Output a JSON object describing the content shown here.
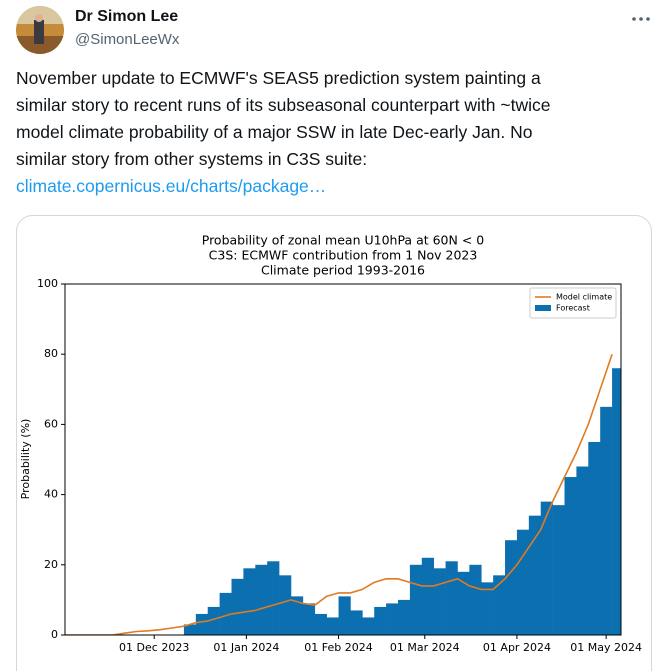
{
  "user": {
    "name": "Dr Simon Lee",
    "handle": "@SimonLeeWx"
  },
  "tweet": {
    "lines": [
      "November update to ECMWF's SEAS5 prediction system painting a",
      "similar story to recent runs of its subseasonal counterpart with ~twice",
      "model climate probability of a major SSW in late Dec-early Jan. No",
      "similar story from other systems in C3S suite:"
    ],
    "link": "climate.copernicus.eu/charts/package…"
  },
  "chart_data": {
    "type": "bar-line",
    "title": "Probability of zonal mean U10hPa at 60N < 0",
    "subtitle": [
      "C3S: ECMWF contribution from 1 Nov 2023",
      "Climate period 1993-2016"
    ],
    "ylabel": "Probability (%)",
    "x": [
      "01 Nov 2023",
      "05 Nov 2023",
      "09 Nov 2023",
      "13 Nov 2023",
      "17 Nov 2023",
      "21 Nov 2023",
      "25 Nov 2023",
      "29 Nov 2023",
      "03 Dec 2023",
      "07 Dec 2023",
      "11 Dec 2023",
      "15 Dec 2023",
      "19 Dec 2023",
      "23 Dec 2023",
      "27 Dec 2023",
      "31 Dec 2023",
      "04 Jan 2024",
      "08 Jan 2024",
      "12 Jan 2024",
      "16 Jan 2024",
      "20 Jan 2024",
      "24 Jan 2024",
      "28 Jan 2024",
      "01 Feb 2024",
      "05 Feb 2024",
      "09 Feb 2024",
      "13 Feb 2024",
      "17 Feb 2024",
      "21 Feb 2024",
      "25 Feb 2024",
      "29 Feb 2024",
      "04 Mar 2024",
      "08 Mar 2024",
      "12 Mar 2024",
      "16 Mar 2024",
      "20 Mar 2024",
      "24 Mar 2024",
      "28 Mar 2024",
      "01 Apr 2024",
      "05 Apr 2024",
      "09 Apr 2024",
      "13 Apr 2024",
      "17 Apr 2024",
      "21 Apr 2024",
      "25 Apr 2024",
      "29 Apr 2024",
      "03 May 2024"
    ],
    "series": [
      {
        "name": "Model climate",
        "type": "line",
        "color": "#e07b22",
        "values": [
          0,
          0,
          0,
          0,
          0,
          0.5,
          1,
          1.2,
          1.5,
          2,
          2.5,
          3.5,
          4,
          5,
          6,
          6.5,
          7,
          8,
          9,
          10,
          9,
          8.5,
          11,
          12,
          12,
          13,
          15,
          16,
          16,
          15,
          14,
          14,
          15,
          16,
          14,
          13,
          13,
          16,
          20,
          25,
          30,
          38,
          45,
          52,
          60,
          70,
          80
        ]
      },
      {
        "name": "Forecast",
        "type": "bar",
        "color": "#0b6fb0",
        "values": [
          0,
          0,
          0,
          0,
          0,
          0,
          0,
          0,
          0,
          0,
          3,
          6,
          8,
          12,
          16,
          19,
          20,
          21,
          17,
          11,
          9,
          6,
          5,
          11,
          7,
          5,
          8,
          9,
          10,
          20,
          22,
          19,
          21,
          18,
          20,
          15,
          17,
          27,
          30,
          34,
          38,
          37,
          45,
          48,
          55,
          65,
          76
        ]
      }
    ],
    "xlim": [
      "01 Nov 2023",
      "06 May 2024"
    ],
    "xticks": [
      "01 Dec 2023",
      "01 Jan 2024",
      "01 Feb 2024",
      "01 Mar 2024",
      "01 Apr 2024",
      "01 May 2024"
    ],
    "ylim": [
      0,
      100
    ],
    "yticks": [
      0,
      20,
      40,
      60,
      80,
      100
    ],
    "grid": false,
    "legend": "upper right"
  }
}
